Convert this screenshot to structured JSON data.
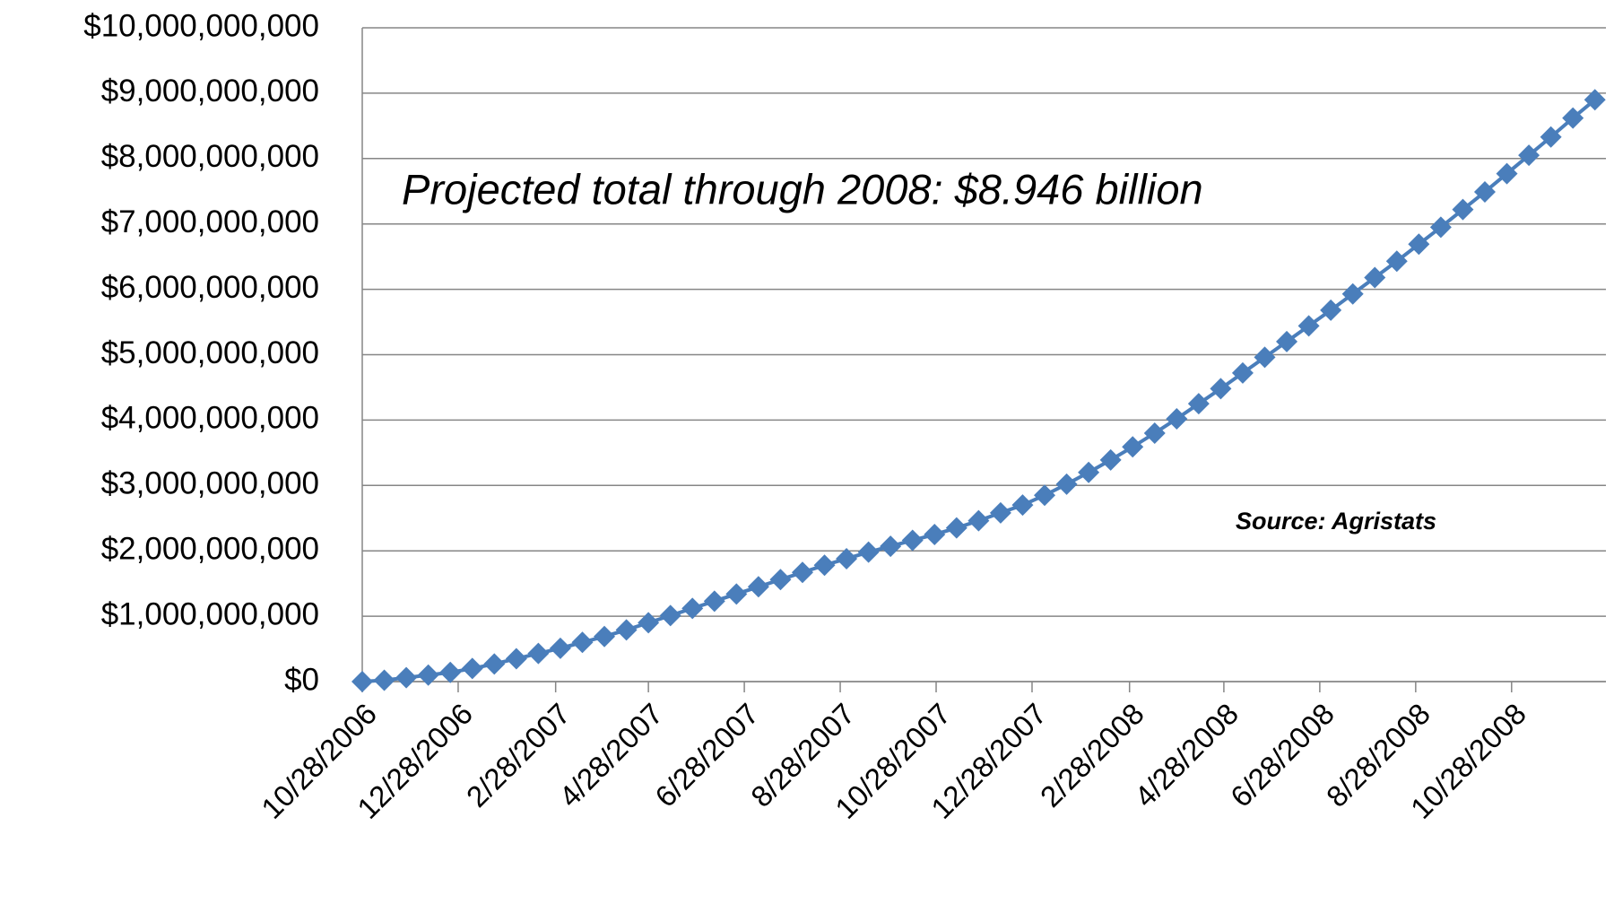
{
  "chart_data": {
    "type": "line",
    "annotations": [
      "Projected total through 2008:  $8.946 billion",
      "Source: Agristats"
    ],
    "x": [
      "10/28/2006",
      "11/11/2006",
      "11/25/2006",
      "12/9/2006",
      "12/23/2006",
      "1/6/2007",
      "1/20/2007",
      "2/3/2007",
      "2/17/2007",
      "3/3/2007",
      "3/17/2007",
      "3/31/2007",
      "4/14/2007",
      "4/28/2007",
      "5/12/2007",
      "5/26/2007",
      "6/9/2007",
      "6/23/2007",
      "7/7/2007",
      "7/21/2007",
      "8/4/2007",
      "8/18/2007",
      "9/1/2007",
      "9/15/2007",
      "9/29/2007",
      "10/13/2007",
      "10/27/2007",
      "11/10/2007",
      "11/24/2007",
      "12/8/2007",
      "12/22/2007",
      "1/5/2008",
      "1/19/2008",
      "2/2/2008",
      "2/16/2008",
      "3/1/2008",
      "3/15/2008",
      "3/29/2008",
      "4/12/2008",
      "4/26/2008",
      "5/10/2008",
      "5/24/2008",
      "6/7/2008",
      "6/21/2008",
      "7/5/2008",
      "7/19/2008",
      "8/2/2008",
      "8/16/2008",
      "8/30/2008",
      "9/13/2008",
      "9/27/2008",
      "10/11/2008",
      "10/25/2008",
      "11/8/2008",
      "11/22/2008",
      "12/6/2008",
      "12/20/2008"
    ],
    "series": [
      {
        "color": "#4a7ebb",
        "values": [
          0,
          20000000,
          60000000,
          100000000,
          140000000,
          200000000,
          270000000,
          350000000,
          430000000,
          510000000,
          600000000,
          690000000,
          790000000,
          900000000,
          1010000000,
          1120000000,
          1230000000,
          1340000000,
          1450000000,
          1560000000,
          1670000000,
          1780000000,
          1880000000,
          1980000000,
          2070000000,
          2160000000,
          2250000000,
          2350000000,
          2460000000,
          2580000000,
          2700000000,
          2850000000,
          3020000000,
          3200000000,
          3390000000,
          3590000000,
          3800000000,
          4020000000,
          4250000000,
          4480000000,
          4720000000,
          4960000000,
          5200000000,
          5440000000,
          5680000000,
          5930000000,
          6180000000,
          6430000000,
          6690000000,
          6950000000,
          7220000000,
          7490000000,
          7770000000,
          8050000000,
          8330000000,
          8620000000,
          8900000000
        ]
      }
    ],
    "xlim": [
      "10/28/2006",
      "12/27/2008"
    ],
    "xticks": [
      "10/28/2006",
      "12/28/2006",
      "2/28/2007",
      "4/28/2007",
      "6/28/2007",
      "8/28/2007",
      "10/28/2007",
      "12/28/2007",
      "2/28/2008",
      "4/28/2008",
      "6/28/2008",
      "8/28/2008",
      "10/28/2008"
    ],
    "ylim": [
      0,
      10000000000
    ],
    "yticks": [
      {
        "value": 0,
        "label": "$0"
      },
      {
        "value": 1000000000,
        "label": "$1,000,000,000"
      },
      {
        "value": 2000000000,
        "label": "$2,000,000,000"
      },
      {
        "value": 3000000000,
        "label": "$3,000,000,000"
      },
      {
        "value": 4000000000,
        "label": "$4,000,000,000"
      },
      {
        "value": 5000000000,
        "label": "$5,000,000,000"
      },
      {
        "value": 6000000000,
        "label": "$6,000,000,000"
      },
      {
        "value": 7000000000,
        "label": "$7,000,000,000"
      },
      {
        "value": 8000000000,
        "label": "$8,000,000,000"
      },
      {
        "value": 9000000000,
        "label": "$9,000,000,000"
      },
      {
        "value": 10000000000,
        "label": "$10,000,000,000"
      }
    ],
    "grid": true
  }
}
